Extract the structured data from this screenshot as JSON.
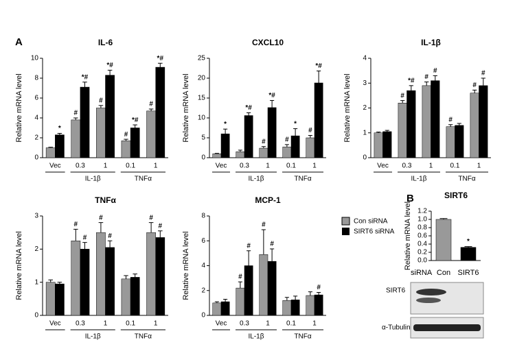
{
  "panels": [
    "A",
    "B"
  ],
  "blot": {
    "labels": [
      "SIRT6",
      "α-Tubulin"
    ]
  },
  "chart_data": [
    {
      "type": "bar",
      "title": "IL-6",
      "ylabel": "Relative mRNA level",
      "categories": [
        "Vec",
        "0.3",
        "1",
        "0.1",
        "1"
      ],
      "groups": [
        "IL-1β",
        "TNFα"
      ],
      "ylim": [
        0,
        10
      ],
      "yticks": [
        0,
        2,
        4,
        6,
        8,
        10
      ],
      "series": [
        {
          "name": "Con siRNA",
          "color": "#999999",
          "values": [
            1.0,
            3.8,
            5.0,
            1.7,
            4.7
          ],
          "errors": [
            0.05,
            0.2,
            0.25,
            0.15,
            0.2
          ],
          "annotations": [
            null,
            "#",
            "#",
            "#",
            "#"
          ]
        },
        {
          "name": "SIRT6 siRNA",
          "color": "#000000",
          "values": [
            2.3,
            7.1,
            8.3,
            3.0,
            9.1
          ],
          "errors": [
            0.15,
            0.5,
            0.5,
            0.3,
            0.4
          ],
          "annotations": [
            "*",
            "*#",
            "*#",
            "*#",
            "*#"
          ]
        }
      ]
    },
    {
      "type": "bar",
      "title": "CXCL10",
      "ylabel": "Relative mRNA level",
      "categories": [
        "Vec",
        "0.3",
        "1",
        "0.1",
        "1"
      ],
      "groups": [
        "IL-1β",
        "TNFα"
      ],
      "ylim": [
        0,
        25
      ],
      "yticks": [
        0,
        5,
        10,
        15,
        20,
        25
      ],
      "series": [
        {
          "name": "Con siRNA",
          "color": "#999999",
          "values": [
            1.0,
            1.5,
            2.4,
            2.7,
            5.0
          ],
          "errors": [
            0.1,
            0.4,
            0.4,
            0.6,
            0.6
          ],
          "annotations": [
            null,
            null,
            "#",
            "#",
            "#"
          ]
        },
        {
          "name": "SIRT6 siRNA",
          "color": "#000000",
          "values": [
            6.0,
            10.6,
            12.6,
            5.5,
            18.8
          ],
          "errors": [
            1.2,
            0.7,
            1.8,
            1.8,
            3.0
          ],
          "annotations": [
            "*",
            "*#",
            "*#",
            "*",
            "*#"
          ]
        }
      ]
    },
    {
      "type": "bar",
      "title": "IL-1β",
      "ylabel": "Relative mRNA level",
      "categories": [
        "Vec",
        "0.3",
        "1",
        "0.1",
        "1"
      ],
      "groups": [
        "IL-1β",
        "TNFα"
      ],
      "ylim": [
        0,
        4
      ],
      "yticks": [
        0,
        1,
        2,
        3,
        4
      ],
      "series": [
        {
          "name": "Con siRNA",
          "color": "#999999",
          "values": [
            1.0,
            2.2,
            2.9,
            1.25,
            2.6
          ],
          "errors": [
            0.03,
            0.1,
            0.15,
            0.08,
            0.12
          ],
          "annotations": [
            null,
            "#",
            "#",
            "#",
            "#"
          ]
        },
        {
          "name": "SIRT6 siRNA",
          "color": "#000000",
          "values": [
            1.05,
            2.7,
            3.1,
            1.3,
            2.9
          ],
          "errors": [
            0.05,
            0.2,
            0.2,
            0.08,
            0.3
          ],
          "annotations": [
            null,
            "*#",
            "#",
            null,
            "#"
          ]
        }
      ]
    },
    {
      "type": "bar",
      "title": "TNFα",
      "ylabel": "Relative mRNA level",
      "categories": [
        "Vec",
        "0.3",
        "1",
        "0.1",
        "1"
      ],
      "groups": [
        "IL-1β",
        "TNFα"
      ],
      "ylim": [
        0,
        3
      ],
      "yticks": [
        0,
        1,
        2,
        3
      ],
      "series": [
        {
          "name": "Con siRNA",
          "color": "#999999",
          "values": [
            1.0,
            2.25,
            2.5,
            1.1,
            2.5
          ],
          "errors": [
            0.07,
            0.35,
            0.3,
            0.1,
            0.3
          ],
          "annotations": [
            null,
            "#",
            "#",
            null,
            "#"
          ]
        },
        {
          "name": "SIRT6 siRNA",
          "color": "#000000",
          "values": [
            0.95,
            2.0,
            2.05,
            1.15,
            2.35
          ],
          "errors": [
            0.05,
            0.2,
            0.2,
            0.1,
            0.2
          ],
          "annotations": [
            null,
            "#",
            "#",
            null,
            "#"
          ]
        }
      ]
    },
    {
      "type": "bar",
      "title": "MCP-1",
      "ylabel": "Relative mRNA level",
      "categories": [
        "Vec",
        "0.3",
        "1",
        "0.1",
        "1"
      ],
      "groups": [
        "IL-1β",
        "TNFα"
      ],
      "ylim": [
        0,
        8
      ],
      "yticks": [
        0,
        2,
        4,
        6,
        8
      ],
      "series": [
        {
          "name": "Con siRNA",
          "color": "#999999",
          "values": [
            1.0,
            2.2,
            4.9,
            1.2,
            1.6
          ],
          "errors": [
            0.1,
            0.5,
            2.0,
            0.25,
            0.3
          ],
          "annotations": [
            null,
            "#",
            "#",
            null,
            null
          ]
        },
        {
          "name": "SIRT6 siRNA",
          "color": "#000000",
          "values": [
            1.1,
            4.0,
            4.35,
            1.25,
            1.65
          ],
          "errors": [
            0.2,
            1.2,
            1.0,
            0.3,
            0.2
          ],
          "annotations": [
            null,
            "#",
            "#",
            null,
            "#"
          ]
        }
      ]
    },
    {
      "type": "simplebar",
      "title": "SIRT6",
      "ylabel": "Relative mRNA level",
      "xlabel": "siRNA",
      "categories": [
        "Con",
        "SIRT6"
      ],
      "colors": [
        "#999999",
        "#000000"
      ],
      "values": [
        1.0,
        0.32
      ],
      "errors": [
        0.02,
        0.02
      ],
      "annotations": [
        null,
        "*"
      ],
      "ylim": [
        0,
        1.2
      ],
      "yticks": [
        {
          "value": 0,
          "label": "0.0"
        },
        0.2,
        0.4,
        0.6,
        0.8,
        {
          "value": 1,
          "label": "1.0"
        },
        1.2
      ]
    }
  ]
}
